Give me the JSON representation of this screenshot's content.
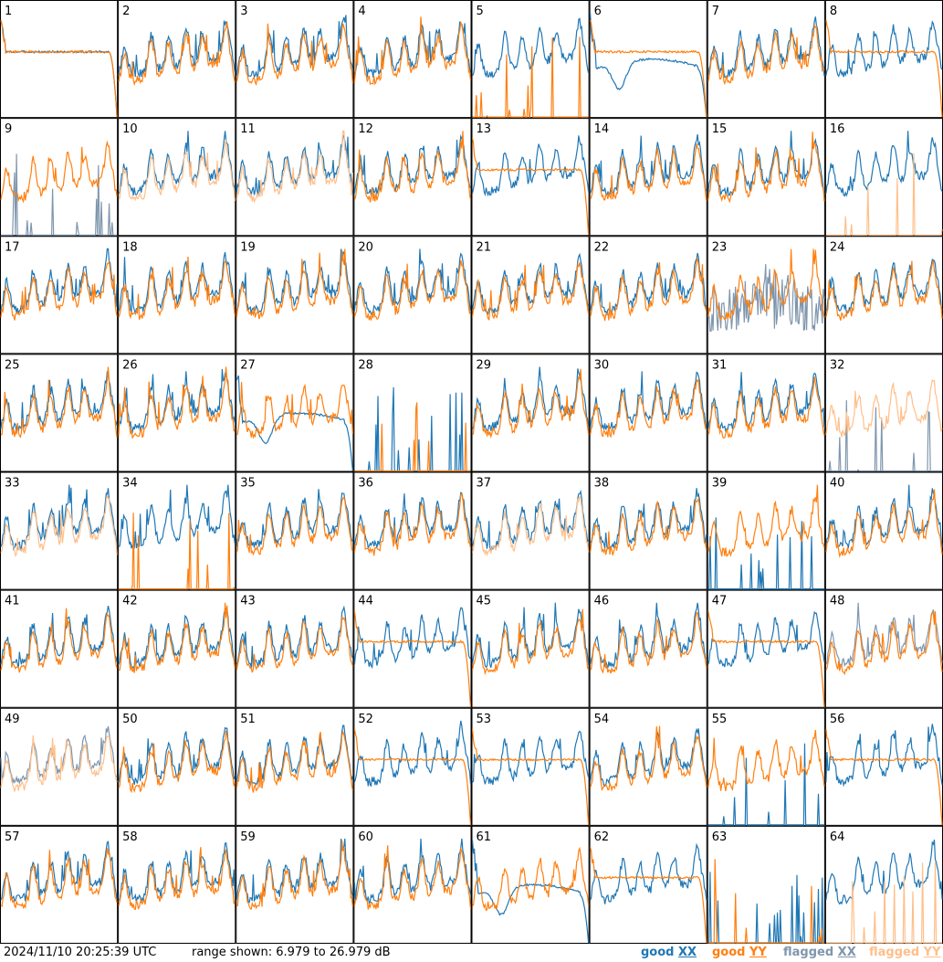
{
  "footer": {
    "timestamp": "2024/11/10 20:25:39 UTC",
    "range_text": "range shown: 6.979 to 26.979 dB",
    "legend": [
      {
        "prefix": "good ",
        "code": "XX",
        "color": "#1f77b4"
      },
      {
        "prefix": "good ",
        "code": "YY",
        "color": "#ff7f0e"
      },
      {
        "prefix": "flagged ",
        "code": "XX",
        "color": "#7f96ad"
      },
      {
        "prefix": "flagged ",
        "code": "YY",
        "color": "#ffbf8a"
      }
    ]
  },
  "chart_data": {
    "type": "line",
    "grid_rows": 8,
    "grid_cols": 8,
    "ylim": [
      6.979,
      26.979
    ],
    "y_unit": "dB",
    "colors": {
      "good_xx": "#1f77b4",
      "good_yy": "#ff7f0e",
      "flagged_xx": "#7f96ad",
      "flagged_yy": "#ffbf8a"
    },
    "panels": [
      {
        "label": "1",
        "xx": "good",
        "yy": "good",
        "xx_shape": "plateau",
        "yy_shape": "plateau"
      },
      {
        "label": "2",
        "xx": "good",
        "yy": "good",
        "xx_shape": "sky",
        "yy_shape": "sky"
      },
      {
        "label": "3",
        "xx": "good",
        "yy": "good",
        "xx_shape": "sky",
        "yy_shape": "sky"
      },
      {
        "label": "4",
        "xx": "good",
        "yy": "good",
        "xx_shape": "sky",
        "yy_shape": "sky"
      },
      {
        "label": "5",
        "xx": "good",
        "yy": "good",
        "xx_shape": "sky",
        "yy_shape": "spikes"
      },
      {
        "label": "6",
        "xx": "good",
        "yy": "good",
        "xx_shape": "dip",
        "yy_shape": "plateau"
      },
      {
        "label": "7",
        "xx": "good",
        "yy": "good",
        "xx_shape": "sky",
        "yy_shape": "sky"
      },
      {
        "label": "8",
        "xx": "good",
        "yy": "good",
        "xx_shape": "sky",
        "yy_shape": "plateau"
      },
      {
        "label": "9",
        "xx": "flagged",
        "yy": "good",
        "xx_shape": "spikes",
        "yy_shape": "sky"
      },
      {
        "label": "10",
        "xx": "good",
        "yy": "flagged",
        "xx_shape": "sky",
        "yy_shape": "sky"
      },
      {
        "label": "11",
        "xx": "good",
        "yy": "flagged",
        "xx_shape": "sky",
        "yy_shape": "sky"
      },
      {
        "label": "12",
        "xx": "good",
        "yy": "good",
        "xx_shape": "sky",
        "yy_shape": "sky"
      },
      {
        "label": "13",
        "xx": "good",
        "yy": "good",
        "xx_shape": "sky",
        "yy_shape": "plateau"
      },
      {
        "label": "14",
        "xx": "good",
        "yy": "good",
        "xx_shape": "sky",
        "yy_shape": "sky"
      },
      {
        "label": "15",
        "xx": "good",
        "yy": "good",
        "xx_shape": "sky",
        "yy_shape": "sky"
      },
      {
        "label": "16",
        "xx": "good",
        "yy": "flagged",
        "xx_shape": "sky",
        "yy_shape": "spikes"
      },
      {
        "label": "17",
        "xx": "good",
        "yy": "good",
        "xx_shape": "sky",
        "yy_shape": "sky"
      },
      {
        "label": "18",
        "xx": "good",
        "yy": "good",
        "xx_shape": "sky",
        "yy_shape": "sky"
      },
      {
        "label": "19",
        "xx": "good",
        "yy": "good",
        "xx_shape": "sky",
        "yy_shape": "sky"
      },
      {
        "label": "20",
        "xx": "good",
        "yy": "good",
        "xx_shape": "sky",
        "yy_shape": "sky"
      },
      {
        "label": "21",
        "xx": "good",
        "yy": "good",
        "xx_shape": "sky",
        "yy_shape": "sky"
      },
      {
        "label": "22",
        "xx": "good",
        "yy": "good",
        "xx_shape": "sky",
        "yy_shape": "sky"
      },
      {
        "label": "23",
        "xx": "flagged",
        "yy": "good",
        "xx_shape": "noisy",
        "yy_shape": "sky"
      },
      {
        "label": "24",
        "xx": "good",
        "yy": "good",
        "xx_shape": "sky",
        "yy_shape": "sky"
      },
      {
        "label": "25",
        "xx": "good",
        "yy": "good",
        "xx_shape": "sky",
        "yy_shape": "sky"
      },
      {
        "label": "26",
        "xx": "good",
        "yy": "good",
        "xx_shape": "sky",
        "yy_shape": "sky"
      },
      {
        "label": "27",
        "xx": "good",
        "yy": "good",
        "xx_shape": "dip",
        "yy_shape": "sky"
      },
      {
        "label": "28",
        "xx": "good",
        "yy": "good",
        "xx_shape": "spikes",
        "yy_shape": "spikes"
      },
      {
        "label": "29",
        "xx": "good",
        "yy": "good",
        "xx_shape": "sky",
        "yy_shape": "sky"
      },
      {
        "label": "30",
        "xx": "good",
        "yy": "good",
        "xx_shape": "sky",
        "yy_shape": "sky"
      },
      {
        "label": "31",
        "xx": "good",
        "yy": "good",
        "xx_shape": "sky",
        "yy_shape": "sky"
      },
      {
        "label": "32",
        "xx": "flagged",
        "yy": "flagged",
        "xx_shape": "spikes",
        "yy_shape": "sky"
      },
      {
        "label": "33",
        "xx": "good",
        "yy": "flagged",
        "xx_shape": "sky",
        "yy_shape": "sky"
      },
      {
        "label": "34",
        "xx": "good",
        "yy": "good",
        "xx_shape": "sky",
        "yy_shape": "spikes"
      },
      {
        "label": "35",
        "xx": "good",
        "yy": "good",
        "xx_shape": "sky",
        "yy_shape": "sky"
      },
      {
        "label": "36",
        "xx": "good",
        "yy": "good",
        "xx_shape": "sky",
        "yy_shape": "sky"
      },
      {
        "label": "37",
        "xx": "good",
        "yy": "flagged",
        "xx_shape": "sky",
        "yy_shape": "sky"
      },
      {
        "label": "38",
        "xx": "good",
        "yy": "good",
        "xx_shape": "sky",
        "yy_shape": "sky"
      },
      {
        "label": "39",
        "xx": "good",
        "yy": "good",
        "xx_shape": "spikes",
        "yy_shape": "sky"
      },
      {
        "label": "40",
        "xx": "good",
        "yy": "good",
        "xx_shape": "sky",
        "yy_shape": "sky"
      },
      {
        "label": "41",
        "xx": "good",
        "yy": "good",
        "xx_shape": "sky",
        "yy_shape": "sky"
      },
      {
        "label": "42",
        "xx": "good",
        "yy": "good",
        "xx_shape": "sky",
        "yy_shape": "sky"
      },
      {
        "label": "43",
        "xx": "good",
        "yy": "good",
        "xx_shape": "sky",
        "yy_shape": "sky"
      },
      {
        "label": "44",
        "xx": "good",
        "yy": "good",
        "xx_shape": "sky",
        "yy_shape": "plateau"
      },
      {
        "label": "45",
        "xx": "good",
        "yy": "good",
        "xx_shape": "sky",
        "yy_shape": "sky"
      },
      {
        "label": "46",
        "xx": "good",
        "yy": "good",
        "xx_shape": "sky",
        "yy_shape": "sky"
      },
      {
        "label": "47",
        "xx": "good",
        "yy": "good",
        "xx_shape": "sky",
        "yy_shape": "plateau"
      },
      {
        "label": "48",
        "xx": "flagged",
        "yy": "good",
        "xx_shape": "sky",
        "yy_shape": "sky"
      },
      {
        "label": "49",
        "xx": "flagged",
        "yy": "flagged",
        "xx_shape": "sky",
        "yy_shape": "sky"
      },
      {
        "label": "50",
        "xx": "good",
        "yy": "good",
        "xx_shape": "sky",
        "yy_shape": "sky"
      },
      {
        "label": "51",
        "xx": "good",
        "yy": "good",
        "xx_shape": "sky",
        "yy_shape": "sky"
      },
      {
        "label": "52",
        "xx": "good",
        "yy": "good",
        "xx_shape": "sky",
        "yy_shape": "plateau"
      },
      {
        "label": "53",
        "xx": "good",
        "yy": "good",
        "xx_shape": "sky",
        "yy_shape": "plateau"
      },
      {
        "label": "54",
        "xx": "good",
        "yy": "good",
        "xx_shape": "sky",
        "yy_shape": "sky"
      },
      {
        "label": "55",
        "xx": "good",
        "yy": "good",
        "xx_shape": "spikes",
        "yy_shape": "sky"
      },
      {
        "label": "56",
        "xx": "good",
        "yy": "good",
        "xx_shape": "sky",
        "yy_shape": "plateau"
      },
      {
        "label": "57",
        "xx": "good",
        "yy": "good",
        "xx_shape": "sky",
        "yy_shape": "sky"
      },
      {
        "label": "58",
        "xx": "good",
        "yy": "good",
        "xx_shape": "sky",
        "yy_shape": "sky"
      },
      {
        "label": "59",
        "xx": "good",
        "yy": "good",
        "xx_shape": "sky",
        "yy_shape": "sky"
      },
      {
        "label": "60",
        "xx": "good",
        "yy": "good",
        "xx_shape": "sky",
        "yy_shape": "sky"
      },
      {
        "label": "61",
        "xx": "good",
        "yy": "good",
        "xx_shape": "dip",
        "yy_shape": "sky"
      },
      {
        "label": "62",
        "xx": "good",
        "yy": "good",
        "xx_shape": "sky",
        "yy_shape": "plateau"
      },
      {
        "label": "63",
        "xx": "good",
        "yy": "good",
        "xx_shape": "spikes",
        "yy_shape": "spikes"
      },
      {
        "label": "64",
        "xx": "good",
        "yy": "flagged",
        "xx_shape": "sky",
        "yy_shape": "spikes"
      }
    ]
  }
}
